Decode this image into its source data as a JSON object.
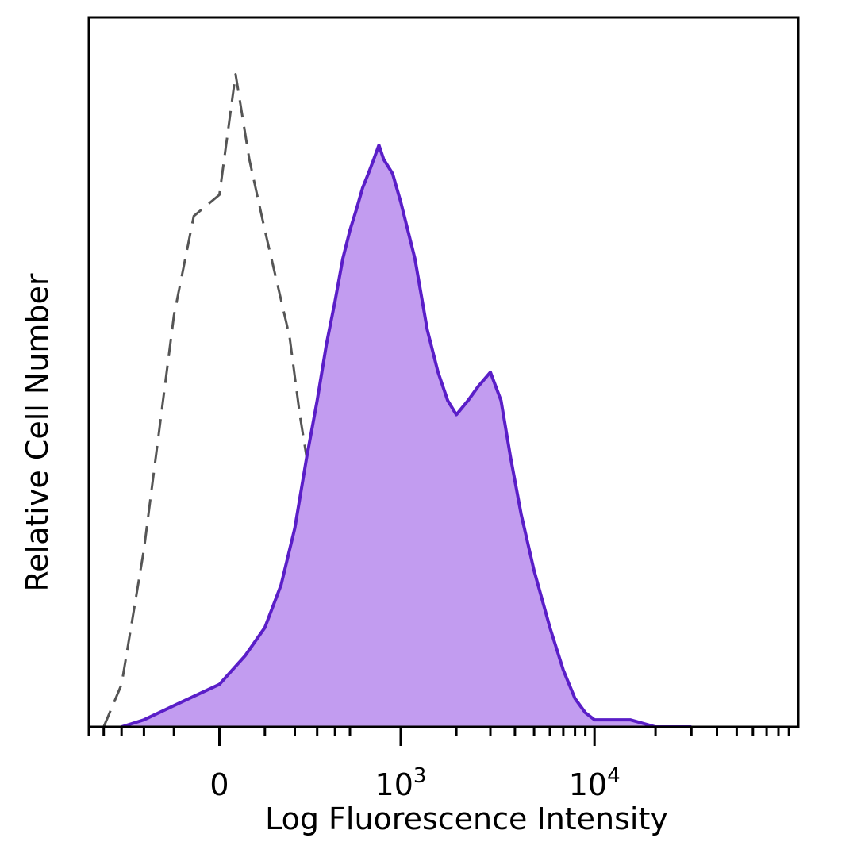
{
  "chart_data": {
    "type": "area",
    "xlabel": "Log Fluorescence Intensity",
    "ylabel": "Relative Cell Number",
    "x_scale": "biexponential",
    "xlim": [
      -500,
      100000
    ],
    "ylim": [
      0,
      1
    ],
    "grid": false,
    "x_ticks": [
      {
        "value": 0,
        "base": "0",
        "exp": ""
      },
      {
        "value": 1000,
        "base": "10",
        "exp": "3"
      },
      {
        "value": 10000,
        "base": "10",
        "exp": "4"
      }
    ],
    "series": [
      {
        "style": "dashed",
        "stroke": "#555555",
        "fill": "none",
        "x": [
          -400,
          -300,
          -200,
          -100,
          -50,
          0,
          30,
          60,
          100,
          140,
          180,
          220,
          260,
          300,
          350,
          400,
          450,
          500,
          600,
          700,
          800,
          900,
          1000
        ],
        "y": [
          0.0,
          0.06,
          0.25,
          0.58,
          0.72,
          0.75,
          0.92,
          0.8,
          0.7,
          0.62,
          0.55,
          0.44,
          0.36,
          0.28,
          0.22,
          0.18,
          0.14,
          0.1,
          0.06,
          0.04,
          0.02,
          0.01,
          0.0
        ]
      },
      {
        "style": "solid",
        "stroke": "#5a1ec8",
        "fill": "#c29cf0",
        "x": [
          -300,
          -200,
          -100,
          0,
          50,
          100,
          150,
          200,
          250,
          300,
          350,
          400,
          450,
          500,
          550,
          600,
          650,
          700,
          750,
          800,
          900,
          1000,
          1200,
          1400,
          1600,
          1800,
          2000,
          2300,
          2600,
          3000,
          3400,
          3800,
          4300,
          5000,
          6000,
          7000,
          8000,
          9000,
          10000,
          12000,
          15000,
          20000,
          30000
        ],
        "y": [
          0.0,
          0.01,
          0.03,
          0.06,
          0.1,
          0.14,
          0.2,
          0.28,
          0.38,
          0.46,
          0.54,
          0.6,
          0.66,
          0.7,
          0.73,
          0.76,
          0.78,
          0.8,
          0.82,
          0.8,
          0.78,
          0.74,
          0.66,
          0.56,
          0.5,
          0.46,
          0.44,
          0.46,
          0.48,
          0.5,
          0.46,
          0.38,
          0.3,
          0.22,
          0.14,
          0.08,
          0.04,
          0.02,
          0.01,
          0.01,
          0.01,
          0.0,
          0.0
        ]
      }
    ]
  }
}
